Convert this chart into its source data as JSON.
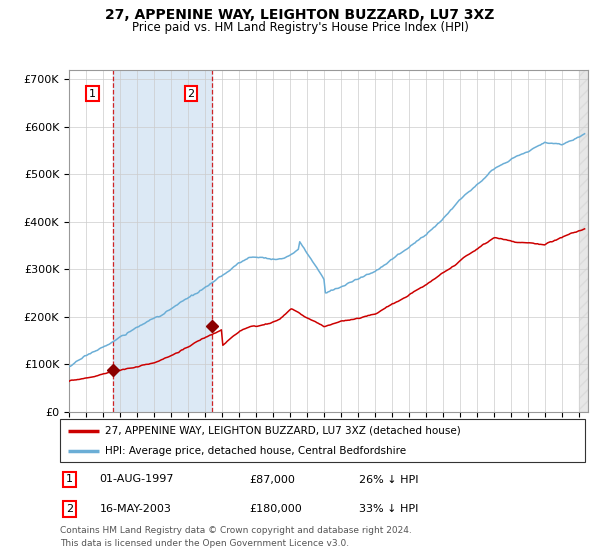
{
  "title": "27, APPENINE WAY, LEIGHTON BUZZARD, LU7 3XZ",
  "subtitle": "Price paid vs. HM Land Registry's House Price Index (HPI)",
  "legend_line1": "27, APPENINE WAY, LEIGHTON BUZZARD, LU7 3XZ (detached house)",
  "legend_line2": "HPI: Average price, detached house, Central Bedfordshire",
  "footnote": "Contains HM Land Registry data © Crown copyright and database right 2024.\nThis data is licensed under the Open Government Licence v3.0.",
  "transaction1_date": "01-AUG-1997",
  "transaction1_price": 87000,
  "transaction1_hpi": "26% ↓ HPI",
  "transaction2_date": "16-MAY-2003",
  "transaction2_price": 180000,
  "transaction2_hpi": "33% ↓ HPI",
  "hpi_color": "#6baed6",
  "price_color": "#cc0000",
  "marker_color": "#8b0000",
  "shade_color": "#dce9f5",
  "grid_color": "#cccccc",
  "background_color": "#ffffff",
  "ylim": [
    0,
    720000
  ],
  "xlim_start": 1995.0,
  "xlim_end": 2025.5,
  "t1_x": 1997.583,
  "t1_y": 87000,
  "t2_x": 2003.375,
  "t2_y": 180000
}
